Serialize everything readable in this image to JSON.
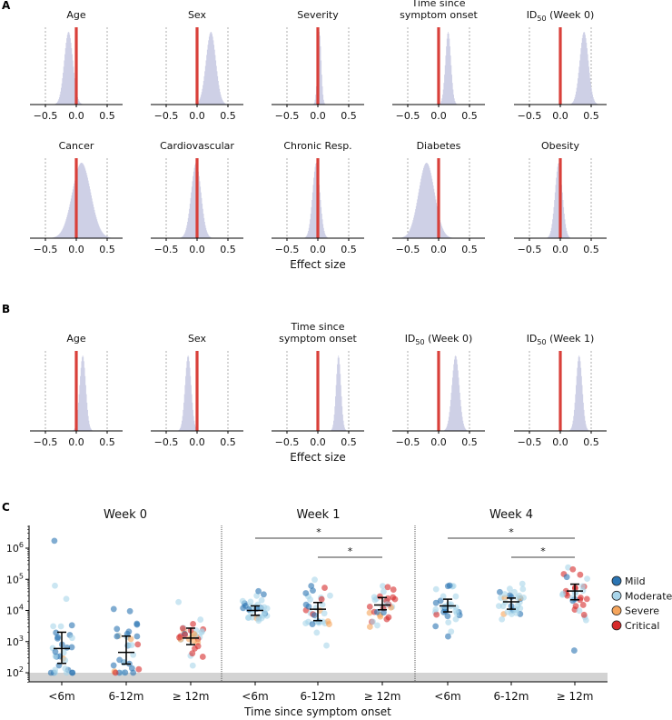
{
  "chart_data": [
    {
      "type": "histogram",
      "panel_label": "A",
      "xlabel": "Effect size",
      "xlim": [
        -0.75,
        0.75
      ],
      "xticks": [
        -0.5,
        0.0,
        0.5
      ],
      "xtick_labels": [
        "−0.5",
        "0.0",
        "0.5"
      ],
      "reference_line": 0.0,
      "rows": [
        [
          {
            "title": "Age",
            "mean": -0.13,
            "sd": 0.07
          },
          {
            "title": "Sex",
            "mean": 0.22,
            "sd": 0.08
          },
          {
            "title": "Severity",
            "mean": 0.02,
            "sd": 0.03
          },
          {
            "title": "Time since\nsymptom onset",
            "mean": 0.15,
            "sd": 0.045
          },
          {
            "title": "ID50 (Week 0)",
            "mean": 0.38,
            "sd": 0.07
          }
        ],
        [
          {
            "title": "Cancer",
            "mean": 0.08,
            "sd": 0.15
          },
          {
            "title": "Cardiovascular",
            "mean": -0.02,
            "sd": 0.08
          },
          {
            "title": "Chronic Resp.",
            "mean": -0.03,
            "sd": 0.06
          },
          {
            "title": "Diabetes",
            "mean": -0.2,
            "sd": 0.13
          },
          {
            "title": "Obesity",
            "mean": -0.03,
            "sd": 0.06
          }
        ]
      ]
    },
    {
      "type": "histogram",
      "panel_label": "B",
      "xlabel": "Effect size",
      "xlim": [
        -0.75,
        0.75
      ],
      "xticks": [
        -0.5,
        0.0,
        0.5
      ],
      "xtick_labels": [
        "−0.5",
        "0.0",
        "0.5"
      ],
      "reference_line": 0.0,
      "rows": [
        [
          {
            "title": "Age",
            "mean": 0.1,
            "sd": 0.05
          },
          {
            "title": "Sex",
            "mean": -0.15,
            "sd": 0.05
          },
          {
            "title": "Time since\nsymptom onset",
            "mean": 0.33,
            "sd": 0.04
          },
          {
            "title": "ID50 (Week 0)",
            "mean": 0.27,
            "sd": 0.06
          },
          {
            "title": "ID50 (Week 1)",
            "mean": 0.3,
            "sd": 0.05
          }
        ]
      ]
    },
    {
      "type": "scatter",
      "panel_label": "C",
      "xlabel": "Time since symptom onset",
      "yscale": "log",
      "ylim": [
        50,
        5000000
      ],
      "yticks": [
        100,
        1000,
        10000,
        100000,
        1000000
      ],
      "ytick_labels": [
        [
          "10",
          "2"
        ],
        [
          "10",
          "3"
        ],
        [
          "10",
          "4"
        ],
        [
          "10",
          "5"
        ],
        [
          "10",
          "6"
        ]
      ],
      "limit_of_detection": 100,
      "categories": [
        "<6m",
        "6-12m",
        "≥ 12m"
      ],
      "legend": [
        {
          "label": "Mild",
          "color": "#2b75b3"
        },
        {
          "label": "Moderate",
          "color": "#a9d5ea"
        },
        {
          "label": "Severe",
          "color": "#f5a55c"
        },
        {
          "label": "Critical",
          "color": "#d62b2b"
        }
      ],
      "significance_marker": "*",
      "panels": [
        {
          "title": "Week 0",
          "groups": [
            {
              "median": 600,
              "q1": 200,
              "q3": 2000,
              "mix": [
                0.45,
                0.45,
                0.05,
                0.05
              ]
            },
            {
              "median": 450,
              "q1": 190,
              "q3": 1500,
              "mix": [
                0.45,
                0.4,
                0.1,
                0.05
              ]
            },
            {
              "median": 1300,
              "q1": 800,
              "q3": 2700,
              "mix": [
                0.1,
                0.4,
                0.2,
                0.3
              ]
            }
          ],
          "brackets": []
        },
        {
          "title": "Week 1",
          "groups": [
            {
              "median": 10000,
              "q1": 7000,
              "q3": 14000,
              "mix": [
                0.35,
                0.55,
                0.1,
                0.0
              ]
            },
            {
              "median": 11000,
              "q1": 4700,
              "q3": 18000,
              "mix": [
                0.35,
                0.5,
                0.05,
                0.1
              ]
            },
            {
              "median": 15000,
              "q1": 10500,
              "q3": 26000,
              "mix": [
                0.05,
                0.4,
                0.25,
                0.3
              ]
            }
          ],
          "brackets": [
            [
              0,
              2
            ],
            [
              1,
              2
            ]
          ]
        },
        {
          "title": "Week 4",
          "groups": [
            {
              "median": 14000,
              "q1": 9000,
              "q3": 23000,
              "mix": [
                0.3,
                0.6,
                0.0,
                0.1
              ]
            },
            {
              "median": 19000,
              "q1": 11000,
              "q3": 25000,
              "mix": [
                0.3,
                0.6,
                0.1,
                0.0
              ]
            },
            {
              "median": 42000,
              "q1": 22000,
              "q3": 70000,
              "mix": [
                0.05,
                0.45,
                0.0,
                0.5
              ]
            }
          ],
          "brackets": [
            [
              0,
              2
            ],
            [
              1,
              2
            ]
          ]
        }
      ]
    }
  ]
}
